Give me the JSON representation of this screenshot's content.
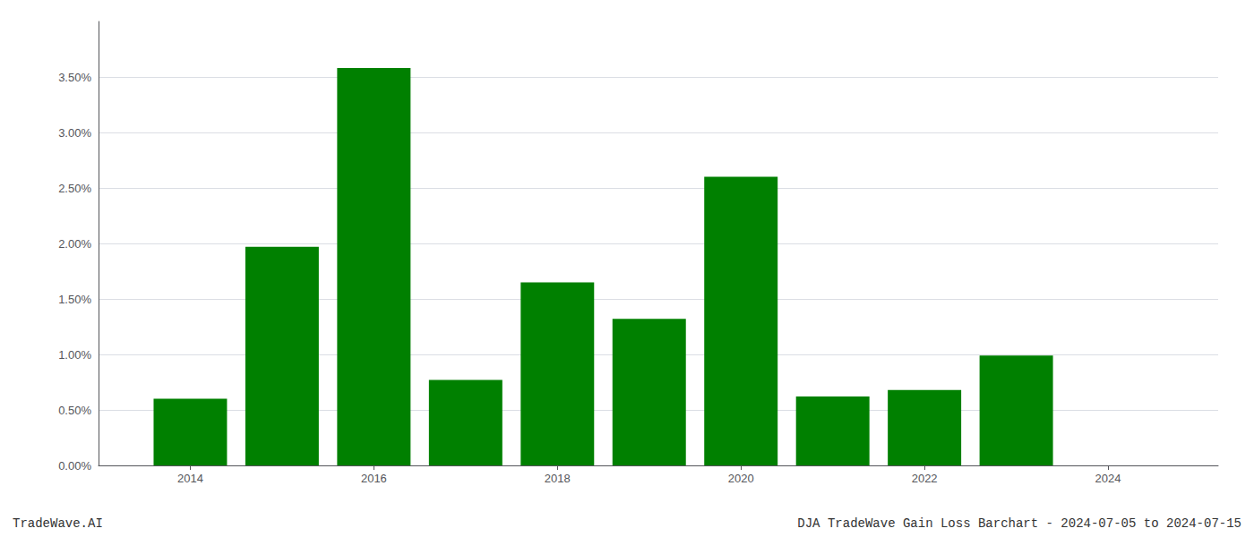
{
  "chart_data": {
    "type": "bar",
    "x": [
      2014,
      2015,
      2016,
      2017,
      2018,
      2019,
      2020,
      2021,
      2022,
      2023,
      2024
    ],
    "values": [
      0.006,
      0.0197,
      0.0358,
      0.0077,
      0.0165,
      0.0132,
      0.026,
      0.0062,
      0.0068,
      0.0099,
      0.0
    ],
    "color": "#008000",
    "xlim": [
      2013.0,
      2025.2
    ],
    "xticks": [
      2014,
      2016,
      2018,
      2020,
      2022,
      2024
    ],
    "ylim": [
      0,
      0.04
    ],
    "yticks": [
      {
        "value": 0.0,
        "label": "0.00%"
      },
      {
        "value": 0.005,
        "label": "0.50%"
      },
      {
        "value": 0.01,
        "label": "1.00%"
      },
      {
        "value": 0.015,
        "label": "1.50%"
      },
      {
        "value": 0.02,
        "label": "2.00%"
      },
      {
        "value": 0.025,
        "label": "2.50%"
      },
      {
        "value": 0.03,
        "label": "3.00%"
      },
      {
        "value": 0.035,
        "label": "3.50%"
      }
    ],
    "grid": true,
    "annotations": [
      "TradeWave.AI",
      "DJA TradeWave Gain Loss Barchart - 2024-07-05 to 2024-07-15"
    ]
  }
}
